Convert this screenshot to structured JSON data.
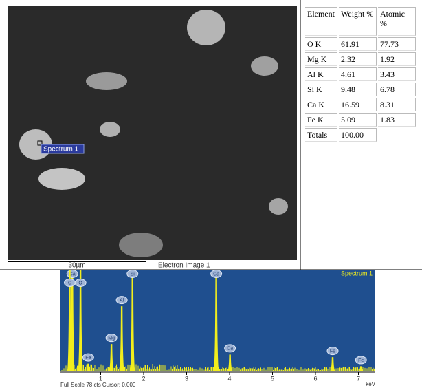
{
  "image": {
    "marker_label": "Spectrum 1",
    "scale_label": "30µm",
    "caption": "Electron Image 1"
  },
  "table": {
    "header": [
      "Element",
      "Weight %",
      "Atomic %"
    ],
    "rows": [
      [
        "O K",
        "61.91",
        "77.73"
      ],
      [
        "Mg K",
        "2.32",
        "1.92"
      ],
      [
        "Al K",
        "4.61",
        "3.43"
      ],
      [
        "Si K",
        "9.48",
        "6.78"
      ],
      [
        "Ca K",
        "16.59",
        "8.31"
      ],
      [
        "Fe K",
        "5.09",
        "1.83"
      ]
    ],
    "totals": [
      "Totals",
      "100.00"
    ]
  },
  "chart_data": {
    "type": "spectrum",
    "title": "Spectrum 1",
    "x_label": "keV",
    "footer": "Full Scale 78 cts Cursor: 0.000",
    "color": "#f2ee1c",
    "background": "#1f4f8f",
    "xlim": [
      0,
      7.4
    ],
    "ylim": [
      0,
      78
    ],
    "xticks": [
      1,
      2,
      3,
      4,
      5,
      6,
      7
    ],
    "peaks": [
      {
        "label": "Ca",
        "x": 0.34,
        "height": 78
      },
      {
        "label": "C",
        "x": 0.28,
        "height": 78
      },
      {
        "label": "O",
        "x": 0.53,
        "height": 78
      },
      {
        "label": "Fe",
        "x": 0.71,
        "height": 6
      },
      {
        "label": "Mg",
        "x": 1.25,
        "height": 21
      },
      {
        "label": "Al",
        "x": 1.49,
        "height": 50
      },
      {
        "label": "Si",
        "x": 1.74,
        "height": 74
      },
      {
        "label": "Ca",
        "x": 3.69,
        "height": 78
      },
      {
        "label": "Ca",
        "x": 4.01,
        "height": 13
      },
      {
        "label": "Fe",
        "x": 6.4,
        "height": 11
      },
      {
        "label": "Fe",
        "x": 7.06,
        "height": 4
      }
    ]
  }
}
